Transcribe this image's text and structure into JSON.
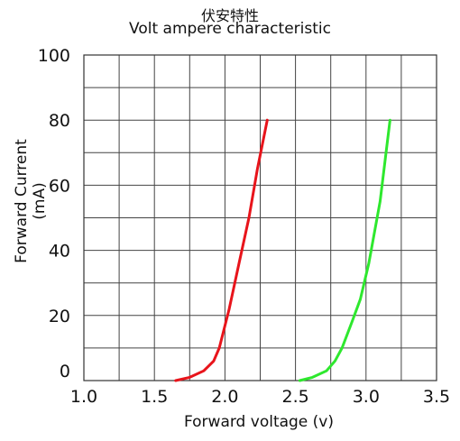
{
  "chart_data": {
    "type": "line",
    "title": "伏安特性",
    "subtitle": "Volt ampere characteristic",
    "xlabel": "Forward  voltage  (v)",
    "ylabel": "Forward Current  (mA)",
    "xlim": [
      1.0,
      3.5
    ],
    "ylim": [
      0,
      100
    ],
    "x_ticks": [
      "1.0",
      "1.5",
      "2.0",
      "2.5",
      "3.0",
      "3.5"
    ],
    "y_ticks": [
      "0",
      "20",
      "40",
      "60",
      "80",
      "100"
    ],
    "grid": true,
    "series": [
      {
        "color": "#e8141b",
        "x": [
          1.65,
          1.75,
          1.85,
          1.92,
          1.96,
          2.03,
          2.1,
          2.17,
          2.23,
          2.3
        ],
        "y": [
          0,
          1,
          3,
          6,
          10,
          22,
          36,
          50,
          65,
          80
        ]
      },
      {
        "color": "#2ee82e",
        "x": [
          2.53,
          2.62,
          2.72,
          2.78,
          2.83,
          2.9,
          2.96,
          3.02,
          3.1,
          3.17
        ],
        "y": [
          0,
          1,
          3,
          6,
          10,
          18,
          25,
          36,
          55,
          80
        ]
      }
    ]
  }
}
